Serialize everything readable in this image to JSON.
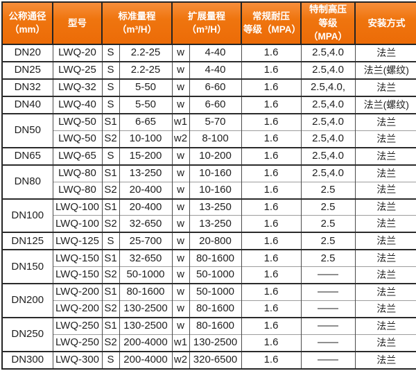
{
  "colors": {
    "header_gradient_top": "#f78e3a",
    "header_gradient_bottom": "#ec6b07",
    "header_text": "#ffffff",
    "border_dark": "#242424",
    "border_light": "#9c9c9c",
    "cell_text": "#1f1f1f",
    "background": "#ffffff"
  },
  "table": {
    "headers": [
      {
        "id": "diameter",
        "label": "公称通径\n（mm）"
      },
      {
        "id": "model",
        "label": "型号"
      },
      {
        "id": "std_range",
        "label": "标准量程\n（m³/H）"
      },
      {
        "id": "ext_range",
        "label": "扩展量程\n（m³/H）"
      },
      {
        "id": "normal_pressure",
        "label": "常规耐压\n等级（MPA）"
      },
      {
        "id": "special_pressure",
        "label": "特制高压\n等级（MPA）"
      },
      {
        "id": "install",
        "label": "安装方式"
      }
    ],
    "rows": [
      {
        "dn": "DN20",
        "dn_span": 1,
        "model": "LWQ-20",
        "s": "S",
        "std": "2.2-25",
        "w": "w",
        "ext": "4-40",
        "mpa": "1.6",
        "hp": "2.5,4.0",
        "install": "法兰"
      },
      {
        "dn": "DN25",
        "dn_span": 1,
        "model": "LWQ-25",
        "s": "S",
        "std": "2.2-25",
        "w": "w",
        "ext": "4-40",
        "mpa": "1.6",
        "hp": "2.5,4.0",
        "install": "法兰(螺纹)"
      },
      {
        "dn": "DN32",
        "dn_span": 1,
        "model": "LWQ-32",
        "s": "S",
        "std": "5-50",
        "w": "w",
        "ext": "6-60",
        "mpa": "1.6",
        "hp": "2.5,4.0,",
        "install": "法兰"
      },
      {
        "dn": "DN40",
        "dn_span": 1,
        "model": "LWQ-40",
        "s": "S",
        "std": "5-50",
        "w": "w",
        "ext": "6-60",
        "mpa": "1.6",
        "hp": "2.5,4.0",
        "install": "法兰(螺纹)"
      },
      {
        "dn": "DN50",
        "dn_span": 2,
        "model": "LWQ-50",
        "s": "S1",
        "std": "6-65",
        "w": "w1",
        "ext": "5-70",
        "mpa": "1.6",
        "hp": "2.5,4.0",
        "install": "法兰"
      },
      {
        "dn": null,
        "sub": true,
        "model": "LWQ-50",
        "s": "S2",
        "std": "10-100",
        "w": "w2",
        "ext": "8-100",
        "mpa": "1.6",
        "hp": "2.5,4.0",
        "install": "法兰"
      },
      {
        "dn": "DN65",
        "dn_span": 1,
        "model": "LWQ-65",
        "s": "S",
        "std": "15-200",
        "w": "w",
        "ext": "10-200",
        "mpa": "1.6",
        "hp": "2.5,4.0",
        "install": "法兰"
      },
      {
        "dn": "DN80",
        "dn_span": 2,
        "model": "LWQ-80",
        "s": "S1",
        "std": "13-250",
        "w": "w",
        "ext": "10-160",
        "mpa": "1.6",
        "hp": "2.5,4.0",
        "install": "法兰"
      },
      {
        "dn": null,
        "sub": true,
        "model": "LWQ-80",
        "s": "S2",
        "std": "20-400",
        "w": "w",
        "ext": "10-160",
        "mpa": "1.6",
        "hp": "2.5",
        "install": "法兰"
      },
      {
        "dn": "DN100",
        "dn_span": 2,
        "model": "LWQ-100",
        "s": "S1",
        "std": "20-400",
        "w": "w",
        "ext": "13-250",
        "mpa": "1.6",
        "hp": "2.5",
        "install": "法兰"
      },
      {
        "dn": null,
        "sub": true,
        "model": "LWQ-100",
        "s": "S2",
        "std": "32-650",
        "w": "w",
        "ext": "13-250",
        "mpa": "1.6",
        "hp": "2.5",
        "install": "法兰"
      },
      {
        "dn": "DN125",
        "dn_span": 1,
        "model": "LWQ-125",
        "s": "S",
        "std": "25-700",
        "w": "w",
        "ext": "20-800",
        "mpa": "1.6",
        "hp": "2.5",
        "install": "法兰"
      },
      {
        "dn": "DN150",
        "dn_span": 2,
        "model": "LWQ-150",
        "s": "S1",
        "std": "32-650",
        "w": "w",
        "ext": "80-1600",
        "mpa": "1.6",
        "hp": "2.5",
        "install": "法兰"
      },
      {
        "dn": null,
        "sub": true,
        "model": "LWQ-150",
        "s": "S2",
        "std": "50-1000",
        "w": "w",
        "ext": "50-1000",
        "mpa": "1.6",
        "hp": "——",
        "install": "法兰"
      },
      {
        "dn": "DN200",
        "dn_span": 2,
        "model": "LWQ-200",
        "s": "S1",
        "std": "80-1600",
        "w": "w",
        "ext": "50-1000",
        "mpa": "1.6",
        "hp": "——",
        "install": "法兰"
      },
      {
        "dn": null,
        "sub": true,
        "model": "LWQ-200",
        "s": "S2",
        "std": "130-2500",
        "w": "w",
        "ext": "80-1600",
        "mpa": "1.6",
        "hp": "——",
        "install": "法兰"
      },
      {
        "dn": "DN250",
        "dn_span": 2,
        "model": "LWQ-250",
        "s": "S1",
        "std": "130-2500",
        "w": "w",
        "ext": "80-1600",
        "mpa": "1.6",
        "hp": "——",
        "install": "法兰"
      },
      {
        "dn": null,
        "sub": true,
        "model": "LWQ-250",
        "s": "S2",
        "std": "200-4000",
        "w": "w1",
        "ext": "130-2500",
        "mpa": "1.6",
        "hp": "——",
        "install": "法兰"
      },
      {
        "dn": "DN300",
        "dn_span": 1,
        "model": "LWQ-300",
        "s": "S",
        "std": "200-4000",
        "w": "w2",
        "ext": "320-6500",
        "mpa": "1.6",
        "hp": "——",
        "install": "法兰"
      }
    ]
  }
}
